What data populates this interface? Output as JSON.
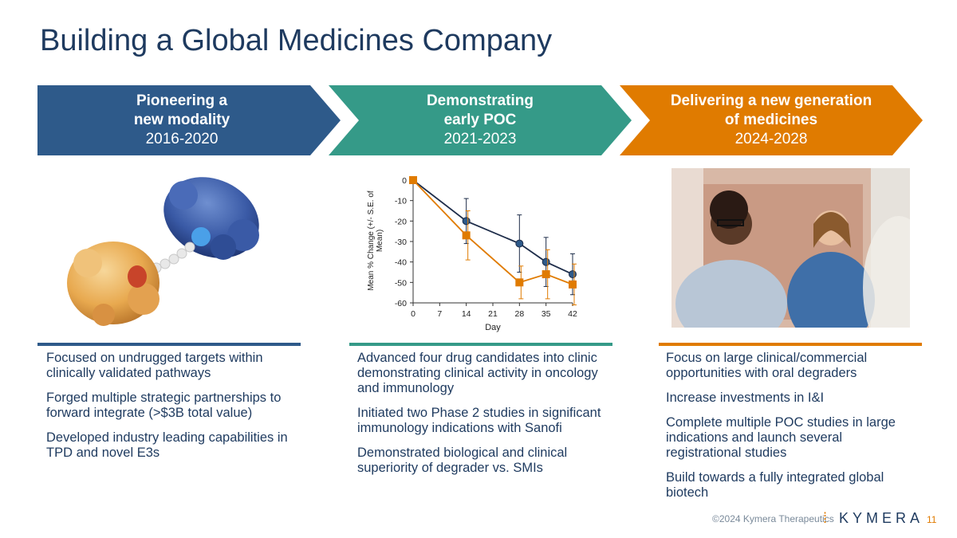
{
  "title": "Building a Global Medicines Company",
  "phases": [
    {
      "line1": "Pioneering a",
      "line2": "new modality",
      "years": "2016-2020",
      "color": "#2e5a8a"
    },
    {
      "line1": "Demonstrating",
      "line2": "early POC",
      "years": "2021-2023",
      "color": "#359a88"
    },
    {
      "line1": "Delivering a new generation",
      "line2": "of medicines",
      "years": "2024-2028",
      "color": "#e07b00"
    }
  ],
  "columns": [
    {
      "bullets": [
        "Focused on undrugged targets within clinically validated pathways",
        "Forged multiple strategic partnerships to forward integrate (>$3B total value)",
        "Developed industry leading capabilities in TPD and novel E3s"
      ]
    },
    {
      "bullets": [
        "Advanced four drug candidates into clinic demonstrating clinical activity in oncology and immunology",
        "Initiated two Phase 2 studies in significant immunology indications with Sanofi",
        "Demonstrated biological and clinical superiority of degrader vs. SMIs"
      ]
    },
    {
      "bullets": [
        "Focus on large clinical/commercial opportunities with oral degraders",
        "Increase investments in I&I",
        "Complete multiple POC studies in large indications and launch several registrational studies",
        "Build towards a fully integrated global biotech"
      ]
    }
  ],
  "footer": {
    "copyright": "©2024 Kymera Therapeutics",
    "logo_text": "KYMERA",
    "page": "11"
  },
  "chart_data": {
    "type": "line",
    "xlabel": "Day",
    "ylabel": "Mean % Change (+/- S.E. of Mean)",
    "x_ticks": [
      0,
      7,
      14,
      21,
      28,
      35,
      42
    ],
    "y_ticks": [
      0,
      -10,
      -20,
      -30,
      -40,
      -50,
      -60
    ],
    "xlim": [
      0,
      42
    ],
    "ylim": [
      -60,
      0
    ],
    "series": [
      {
        "color": "#1e2d4a",
        "marker": "circle",
        "x": [
          0,
          14,
          28,
          35,
          42
        ],
        "y": [
          0,
          -20,
          -31,
          -40,
          -46
        ],
        "err": [
          0,
          11,
          14,
          12,
          10
        ]
      },
      {
        "color": "#e07b00",
        "marker": "square",
        "x": [
          0,
          14,
          28,
          35,
          42
        ],
        "y": [
          0,
          -27,
          -50,
          -46,
          -51
        ],
        "err": [
          0,
          12,
          8,
          12,
          10
        ]
      }
    ]
  }
}
